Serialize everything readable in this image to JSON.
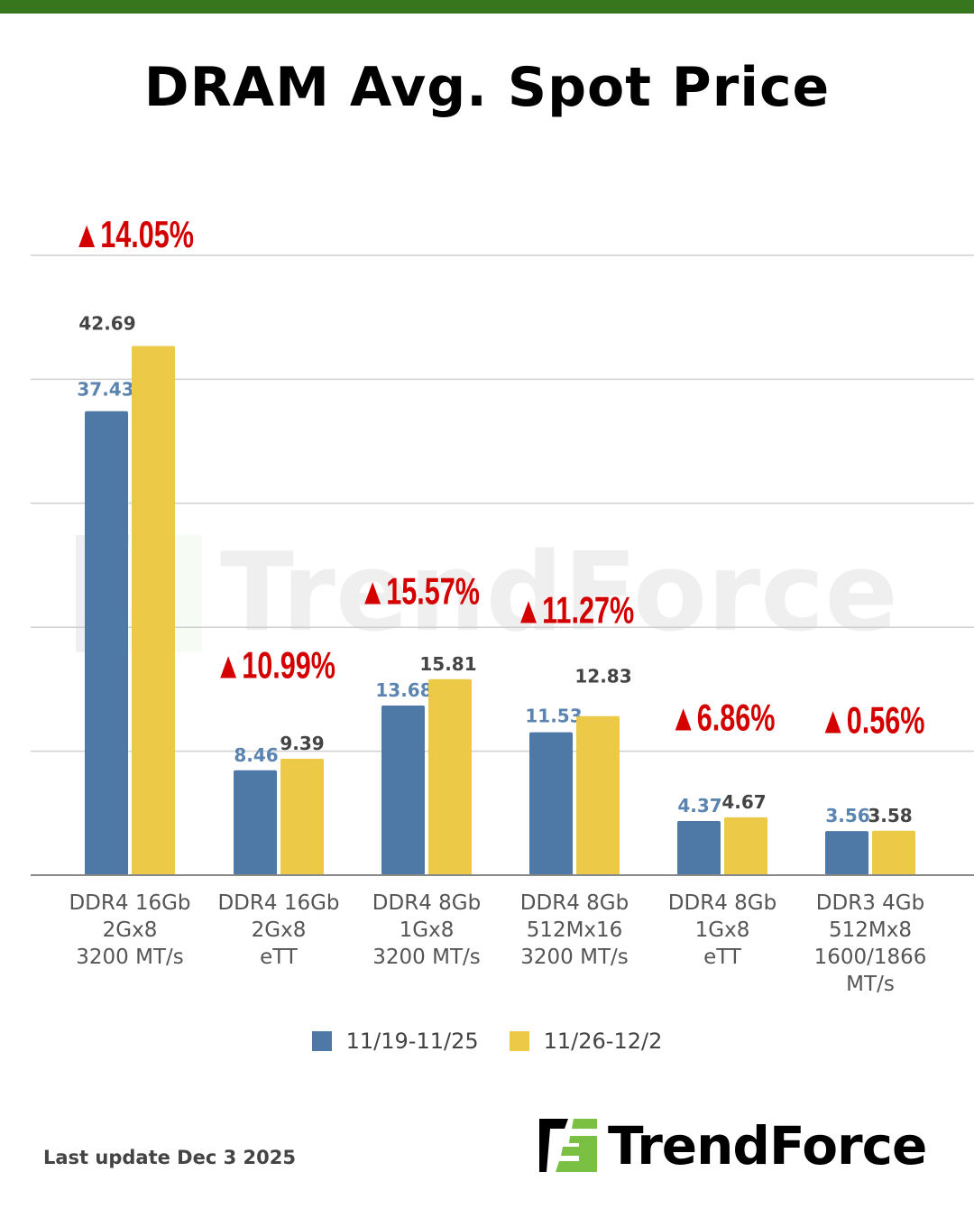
{
  "title": "DRAM Avg. Spot Price",
  "footer": "Last update Dec 3  2025",
  "logo": "TrendForce",
  "watermark": "TrendForce",
  "colors": {
    "series1": "#4e79a7",
    "series2": "#edc948",
    "change": "#d40000",
    "topbar": "#38761d",
    "logo_green": "#7ac143"
  },
  "chart_data": {
    "type": "bar",
    "title": "DRAM Avg. Spot Price",
    "categories": [
      [
        "DDR4 16Gb",
        "2Gx8",
        "3200 MT/s"
      ],
      [
        "DDR4 16Gb",
        "2Gx8",
        "eTT"
      ],
      [
        "DDR4 8Gb",
        "1Gx8",
        "3200 MT/s"
      ],
      [
        "DDR4 8Gb",
        "512Mx16",
        "3200 MT/s"
      ],
      [
        "DDR4 8Gb",
        "1Gx8",
        "eTT"
      ],
      [
        "DDR3 4Gb",
        "512Mx8",
        "1600/1866",
        "MT/s"
      ]
    ],
    "series": [
      {
        "name": "11/19-11/25",
        "values": [
          37.43,
          8.46,
          13.68,
          11.53,
          4.37,
          3.56
        ],
        "labels": [
          "37.43",
          "8.46",
          "13.68",
          "11.53",
          "4.37",
          "3.56"
        ]
      },
      {
        "name": "11/26-12/2",
        "values": [
          42.69,
          9.39,
          15.81,
          12.83,
          4.67,
          3.58
        ],
        "labels": [
          "42.69",
          "9.39",
          "15.81",
          "12.83",
          "4.67",
          "3.58"
        ]
      }
    ],
    "change_labels": [
      "▲14.05%",
      "▲10.99%",
      "▲15.57%",
      "▲11.27%",
      "▲6.86%",
      "▲0.56%"
    ],
    "ylim": [
      0,
      50
    ],
    "grid": true,
    "legend": "bottom"
  }
}
